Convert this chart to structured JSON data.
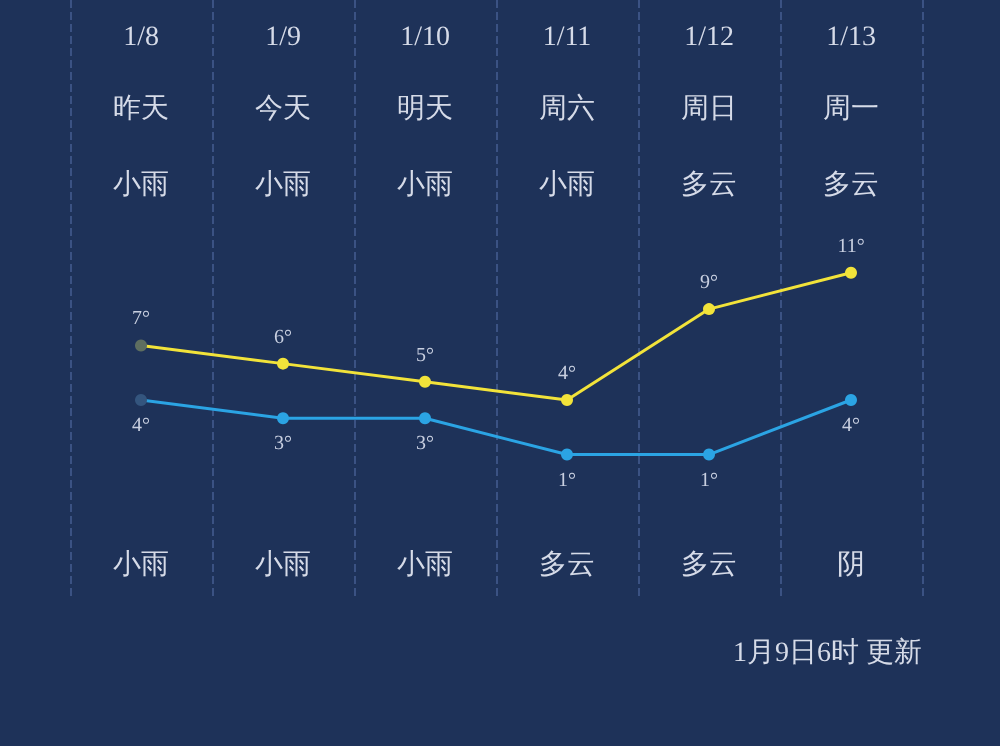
{
  "chart_data": {
    "type": "line",
    "categories": [
      "1/8",
      "1/9",
      "1/10",
      "1/11",
      "1/12",
      "1/13"
    ],
    "series": [
      {
        "color": "#f2e33a",
        "colors": [
          "#5e6e60",
          "#f2e33a",
          "#f2e33a",
          "#f2e33a",
          "#f2e33a",
          "#f2e33a"
        ],
        "values": [
          7,
          6,
          5,
          4,
          9,
          11
        ],
        "value_labels": [
          "7°",
          "6°",
          "5°",
          "4°",
          "9°",
          "11°"
        ]
      },
      {
        "color": "#2ba4e4",
        "colors": [
          "#34557e",
          "#2ba4e4",
          "#2ba4e4",
          "#2ba4e4",
          "#2ba4e4",
          "#2ba4e4"
        ],
        "values": [
          4,
          3,
          3,
          1,
          1,
          4
        ],
        "value_labels": [
          "4°",
          "3°",
          "3°",
          "1°",
          "1°",
          "4°"
        ]
      }
    ],
    "grid": "x",
    "marker": "circle",
    "line_style": "solid",
    "annotations": [
      "昨天",
      "今天",
      "明天",
      "周六",
      "周日",
      "周一",
      "小雨",
      "小雨",
      "小雨",
      "小雨",
      "多云",
      "多云",
      "小雨",
      "小雨",
      "小雨",
      "多云",
      "多云",
      "阴",
      "1月9日6时 更新"
    ]
  }
}
